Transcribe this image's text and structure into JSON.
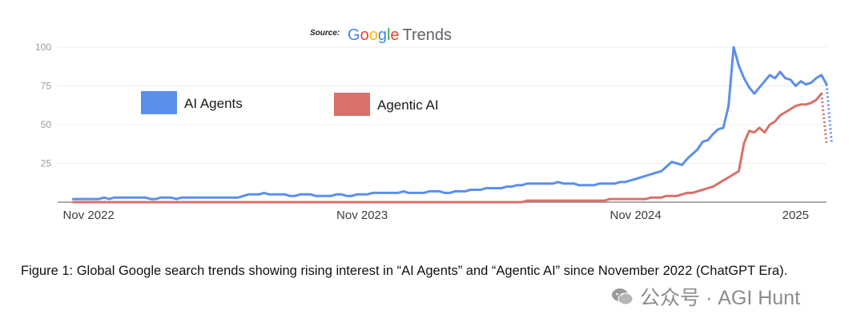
{
  "source": {
    "label": "Source:",
    "logo_brand": "Google",
    "logo_product": "Trends",
    "logo_colors": [
      "#4285F4",
      "#EA4335",
      "#FBBC05",
      "#4285F4",
      "#34A853",
      "#EA4335"
    ]
  },
  "chart_data": {
    "type": "line",
    "ylim": [
      0,
      100
    ],
    "y_ticks": [
      "100",
      "75",
      "50",
      "25"
    ],
    "x_axis_labels": [
      "Nov 2022",
      "Nov 2023",
      "Nov 2024",
      "2025"
    ],
    "x_tick_positions": [
      3,
      56,
      109,
      140
    ],
    "x_range": [
      -3,
      146
    ],
    "legend": {
      "placement": "top-left"
    },
    "grid": true,
    "series": [
      {
        "name": "AI Agents",
        "color": "#5B8FEC",
        "values": [
          2,
          2,
          2,
          2,
          2,
          2,
          3,
          2,
          3,
          3,
          3,
          3,
          3,
          3,
          3,
          2,
          2,
          3,
          3,
          3,
          2,
          3,
          3,
          3,
          3,
          3,
          3,
          3,
          3,
          3,
          3,
          3,
          3,
          4,
          5,
          5,
          5,
          6,
          5,
          5,
          5,
          5,
          4,
          4,
          5,
          5,
          5,
          4,
          4,
          4,
          4,
          5,
          5,
          4,
          4,
          5,
          5,
          5,
          6,
          6,
          6,
          6,
          6,
          6,
          7,
          6,
          6,
          6,
          6,
          7,
          7,
          7,
          6,
          6,
          7,
          7,
          7,
          8,
          8,
          8,
          9,
          9,
          9,
          9,
          10,
          10,
          11,
          11,
          12,
          12,
          12,
          12,
          12,
          12,
          13,
          12,
          12,
          12,
          11,
          11,
          11,
          11,
          12,
          12,
          12,
          12,
          13,
          13,
          14,
          15,
          16,
          17,
          18,
          19,
          20,
          23,
          26,
          25,
          24,
          28,
          31,
          34,
          39,
          40,
          44,
          47,
          48,
          62,
          100,
          88,
          80,
          74,
          70,
          74,
          78,
          82,
          80,
          84,
          80,
          79,
          75,
          78,
          76,
          77,
          80,
          82,
          76
        ],
        "forecast": [
          76,
          38
        ]
      },
      {
        "name": "Agentic AI",
        "color": "#D9706A",
        "values": [
          0,
          0,
          0,
          0,
          0,
          0,
          0,
          0,
          0,
          0,
          0,
          0,
          0,
          0,
          0,
          0,
          0,
          0,
          0,
          0,
          0,
          0,
          0,
          0,
          0,
          0,
          0,
          0,
          0,
          0,
          0,
          0,
          0,
          0,
          0,
          0,
          0,
          0,
          0,
          0,
          0,
          0,
          0,
          0,
          0,
          0,
          0,
          0,
          0,
          0,
          0,
          0,
          0,
          0,
          0,
          0,
          0,
          0,
          0,
          0,
          0,
          0,
          0,
          0,
          0,
          0,
          0,
          0,
          0,
          0,
          0,
          0,
          0,
          0,
          0,
          0,
          0,
          0,
          0,
          0,
          0,
          0,
          0,
          0,
          0,
          0,
          0,
          0,
          1,
          1,
          1,
          1,
          1,
          1,
          1,
          1,
          1,
          1,
          1,
          1,
          1,
          1,
          1,
          1,
          2,
          2,
          2,
          2,
          2,
          2,
          2,
          2,
          3,
          3,
          3,
          4,
          4,
          4,
          5,
          6,
          6,
          7,
          8,
          9,
          10,
          12,
          14,
          16,
          18,
          20,
          38,
          46,
          45,
          48,
          45,
          50,
          52,
          56,
          58,
          60,
          62,
          63,
          63,
          64,
          66,
          70
        ],
        "forecast": [
          70,
          38
        ]
      }
    ]
  },
  "caption": "Figure 1: Global Google search trends showing rising interest in “AI Agents” and “Agentic AI” since November 2022 (ChatGPT Era).",
  "watermark": "公众号 · AGI Hunt"
}
